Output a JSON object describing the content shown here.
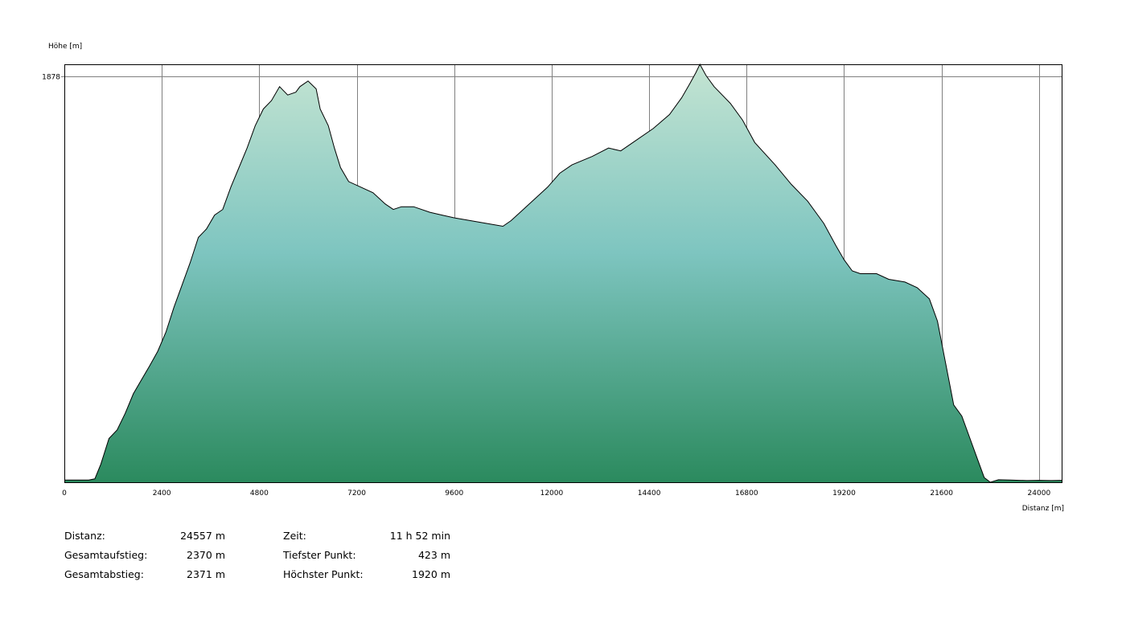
{
  "chart_data": {
    "type": "area",
    "title": "",
    "ylabel": "Höhe [m]",
    "xlabel": "Distanz [m]",
    "xlim": [
      0,
      24557
    ],
    "ylim": [
      423,
      1920
    ],
    "grid": true,
    "x_ticks": [
      0,
      2400,
      4800,
      7200,
      9600,
      12000,
      14400,
      16800,
      19200,
      21600,
      24000
    ],
    "x_tick_labels": [
      "0",
      "2400",
      "4800",
      "7200",
      "9600",
      "12000",
      "14400",
      "16800",
      "19200",
      "21600",
      "24000"
    ],
    "y_ticks": [
      1878
    ],
    "y_tick_labels": [
      "1878"
    ],
    "colors": {
      "fill_top": "#b9dfcc",
      "fill_mid": "#7ec5c0",
      "fill_bottom": "#2b8a5e",
      "line": "#000000",
      "grid": "#808080"
    },
    "x": [
      0,
      600,
      750,
      900,
      1100,
      1300,
      1500,
      1700,
      1900,
      2100,
      2300,
      2500,
      2700,
      2900,
      3100,
      3300,
      3500,
      3700,
      3900,
      4100,
      4300,
      4500,
      4700,
      4900,
      5100,
      5300,
      5500,
      5700,
      5800,
      5900,
      6000,
      6200,
      6300,
      6500,
      6650,
      6800,
      7000,
      7300,
      7600,
      7900,
      8100,
      8300,
      8600,
      9000,
      9300,
      9600,
      10000,
      10400,
      10800,
      11000,
      11300,
      11600,
      11900,
      12200,
      12500,
      13000,
      13400,
      13700,
      14000,
      14500,
      14900,
      15200,
      15400,
      15550,
      15650,
      15800,
      16000,
      16400,
      16700,
      17000,
      17500,
      17900,
      18300,
      18700,
      19000,
      19200,
      19400,
      19600,
      20000,
      20300,
      20700,
      21000,
      21300,
      21500,
      21700,
      21900,
      22100,
      22300,
      22500,
      22650,
      22800,
      23000,
      23300,
      23700,
      24000,
      24300,
      24557
    ],
    "y": [
      431,
      431,
      435,
      488,
      580,
      610,
      670,
      740,
      790,
      840,
      892,
      960,
      1050,
      1130,
      1210,
      1300,
      1330,
      1380,
      1400,
      1480,
      1550,
      1620,
      1700,
      1760,
      1790,
      1840,
      1810,
      1820,
      1840,
      1850,
      1860,
      1832,
      1760,
      1700,
      1620,
      1550,
      1500,
      1480,
      1460,
      1420,
      1400,
      1410,
      1410,
      1390,
      1380,
      1370,
      1360,
      1350,
      1340,
      1360,
      1400,
      1440,
      1480,
      1530,
      1560,
      1590,
      1620,
      1610,
      1640,
      1690,
      1740,
      1800,
      1850,
      1890,
      1920,
      1880,
      1840,
      1780,
      1720,
      1640,
      1560,
      1490,
      1430,
      1350,
      1270,
      1220,
      1180,
      1170,
      1170,
      1150,
      1140,
      1120,
      1080,
      1000,
      850,
      700,
      660,
      580,
      500,
      440,
      423,
      432,
      431,
      429,
      430,
      429,
      430
    ]
  },
  "stats": {
    "left": [
      {
        "label": "Distanz:",
        "value": "24557 m"
      },
      {
        "label": "Gesamtaufstieg:",
        "value": "2370 m"
      },
      {
        "label": "Gesamtabstieg:",
        "value": "2371 m"
      }
    ],
    "right": [
      {
        "label": "Zeit:",
        "value": "11 h 52 min"
      },
      {
        "label": "Tiefster Punkt:",
        "value": "423 m"
      },
      {
        "label": "Höchster Punkt:",
        "value": "1920 m"
      }
    ]
  }
}
